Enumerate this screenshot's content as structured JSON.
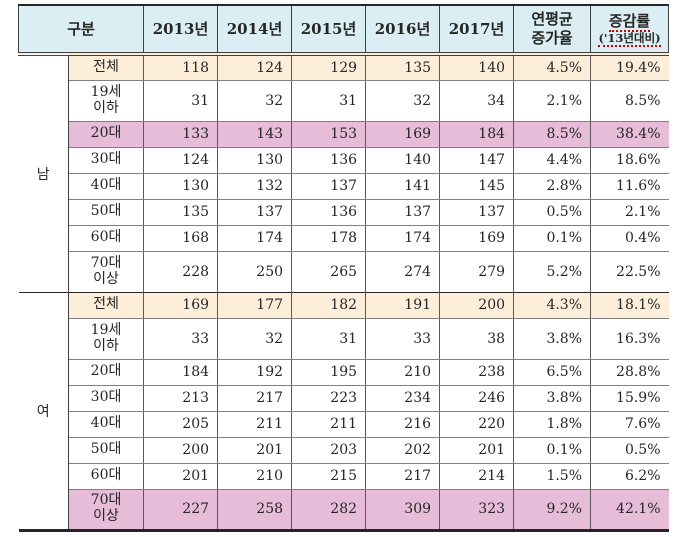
{
  "table": {
    "header": {
      "gubun": "구분",
      "years": [
        "2013년",
        "2014년",
        "2015년",
        "2016년",
        "2017년"
      ],
      "avg_growth": [
        "연평균",
        "증가율"
      ],
      "change_rate": [
        "증감률",
        "('13년대비)"
      ]
    },
    "sections": [
      {
        "gender": "남",
        "rows": [
          {
            "label": [
              "전체"
            ],
            "bg": "beige",
            "values": [
              "118",
              "124",
              "129",
              "135",
              "140"
            ],
            "avg": "4.5%",
            "change": "19.4%"
          },
          {
            "label": [
              "19세",
              "이하"
            ],
            "bg": "white",
            "values": [
              "31",
              "32",
              "31",
              "32",
              "34"
            ],
            "avg": "2.1%",
            "change": "8.5%"
          },
          {
            "label": [
              "20대"
            ],
            "bg": "pink",
            "values": [
              "133",
              "143",
              "153",
              "169",
              "184"
            ],
            "avg": "8.5%",
            "change": "38.4%"
          },
          {
            "label": [
              "30대"
            ],
            "bg": "white",
            "values": [
              "124",
              "130",
              "136",
              "140",
              "147"
            ],
            "avg": "4.4%",
            "change": "18.6%"
          },
          {
            "label": [
              "40대"
            ],
            "bg": "white",
            "values": [
              "130",
              "132",
              "137",
              "141",
              "145"
            ],
            "avg": "2.8%",
            "change": "11.6%"
          },
          {
            "label": [
              "50대"
            ],
            "bg": "white",
            "values": [
              "135",
              "137",
              "136",
              "137",
              "137"
            ],
            "avg": "0.5%",
            "change": "2.1%"
          },
          {
            "label": [
              "60대"
            ],
            "bg": "white",
            "values": [
              "168",
              "174",
              "178",
              "174",
              "169"
            ],
            "avg": "0.1%",
            "change": "0.4%"
          },
          {
            "label": [
              "70대",
              "이상"
            ],
            "bg": "white",
            "values": [
              "228",
              "250",
              "265",
              "274",
              "279"
            ],
            "avg": "5.2%",
            "change": "22.5%"
          }
        ]
      },
      {
        "gender": "여",
        "rows": [
          {
            "label": [
              "전체"
            ],
            "bg": "beige",
            "values": [
              "169",
              "177",
              "182",
              "191",
              "200"
            ],
            "avg": "4.3%",
            "change": "18.1%"
          },
          {
            "label": [
              "19세",
              "이하"
            ],
            "bg": "white",
            "values": [
              "33",
              "32",
              "31",
              "33",
              "38"
            ],
            "avg": "3.8%",
            "change": "16.3%"
          },
          {
            "label": [
              "20대"
            ],
            "bg": "white",
            "values": [
              "184",
              "192",
              "195",
              "210",
              "238"
            ],
            "avg": "6.5%",
            "change": "28.8%"
          },
          {
            "label": [
              "30대"
            ],
            "bg": "white",
            "values": [
              "213",
              "217",
              "223",
              "234",
              "246"
            ],
            "avg": "3.8%",
            "change": "15.9%"
          },
          {
            "label": [
              "40대"
            ],
            "bg": "white",
            "values": [
              "205",
              "211",
              "211",
              "216",
              "220"
            ],
            "avg": "1.8%",
            "change": "7.6%"
          },
          {
            "label": [
              "50대"
            ],
            "bg": "white",
            "values": [
              "200",
              "201",
              "203",
              "202",
              "201"
            ],
            "avg": "0.1%",
            "change": "0.5%"
          },
          {
            "label": [
              "60대"
            ],
            "bg": "white",
            "values": [
              "201",
              "210",
              "215",
              "217",
              "214"
            ],
            "avg": "1.5%",
            "change": "6.2%"
          },
          {
            "label": [
              "70대",
              "이상"
            ],
            "bg": "pink",
            "values": [
              "227",
              "258",
              "282",
              "309",
              "323"
            ],
            "avg": "9.2%",
            "change": "42.1%"
          }
        ]
      }
    ]
  },
  "colors": {
    "header_bg": "#dbeef3",
    "beige_row_bg": "#fdeeda",
    "pink_highlight_bg": "#e6bcd9",
    "border_dark": "#262626",
    "grid_line": "#808080",
    "column_line": "#595959",
    "spellcheck_underline": "#cc0000",
    "text": "#262626"
  }
}
